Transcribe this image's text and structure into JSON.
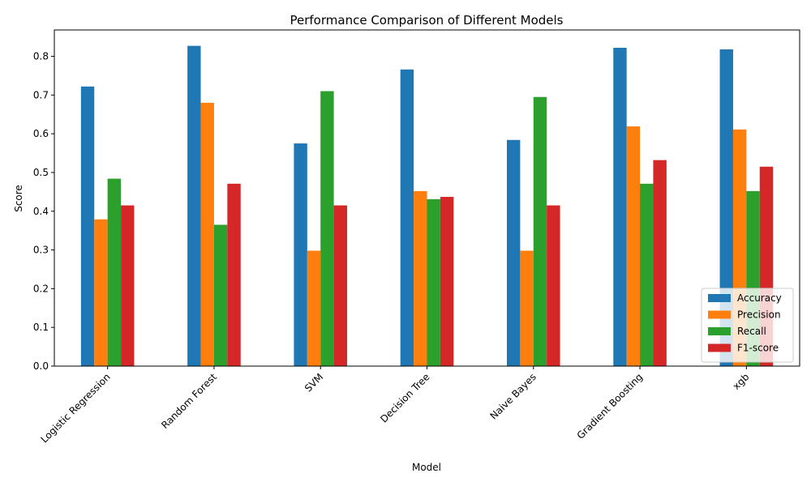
{
  "chart_data": {
    "type": "bar",
    "title": "Performance Comparison of Different Models",
    "xlabel": "Model",
    "ylabel": "Score",
    "ylim": [
      0,
      0.868
    ],
    "yticks": [
      0.0,
      0.1,
      0.2,
      0.3,
      0.4,
      0.5,
      0.6,
      0.7,
      0.8
    ],
    "ytick_labels": [
      "0.0",
      "0.1",
      "0.2",
      "0.3",
      "0.4",
      "0.5",
      "0.6",
      "0.7",
      "0.8"
    ],
    "categories": [
      "Logistic Regression",
      "Random Forest",
      "SVM",
      "Decision Tree",
      "Naive Bayes",
      "Gradient Boosting",
      "xgb"
    ],
    "series": [
      {
        "name": "Accuracy",
        "color": "#1f77b4",
        "values": [
          0.722,
          0.827,
          0.575,
          0.766,
          0.584,
          0.822,
          0.818
        ]
      },
      {
        "name": "Precision",
        "color": "#ff7f0e",
        "values": [
          0.379,
          0.68,
          0.298,
          0.452,
          0.298,
          0.619,
          0.611
        ]
      },
      {
        "name": "Recall",
        "color": "#2ca02c",
        "values": [
          0.484,
          0.365,
          0.71,
          0.431,
          0.695,
          0.471,
          0.452
        ]
      },
      {
        "name": "F1-score",
        "color": "#d62728",
        "values": [
          0.415,
          0.471,
          0.415,
          0.437,
          0.415,
          0.532,
          0.515
        ]
      }
    ],
    "grid": false,
    "legend": "lower-right"
  }
}
